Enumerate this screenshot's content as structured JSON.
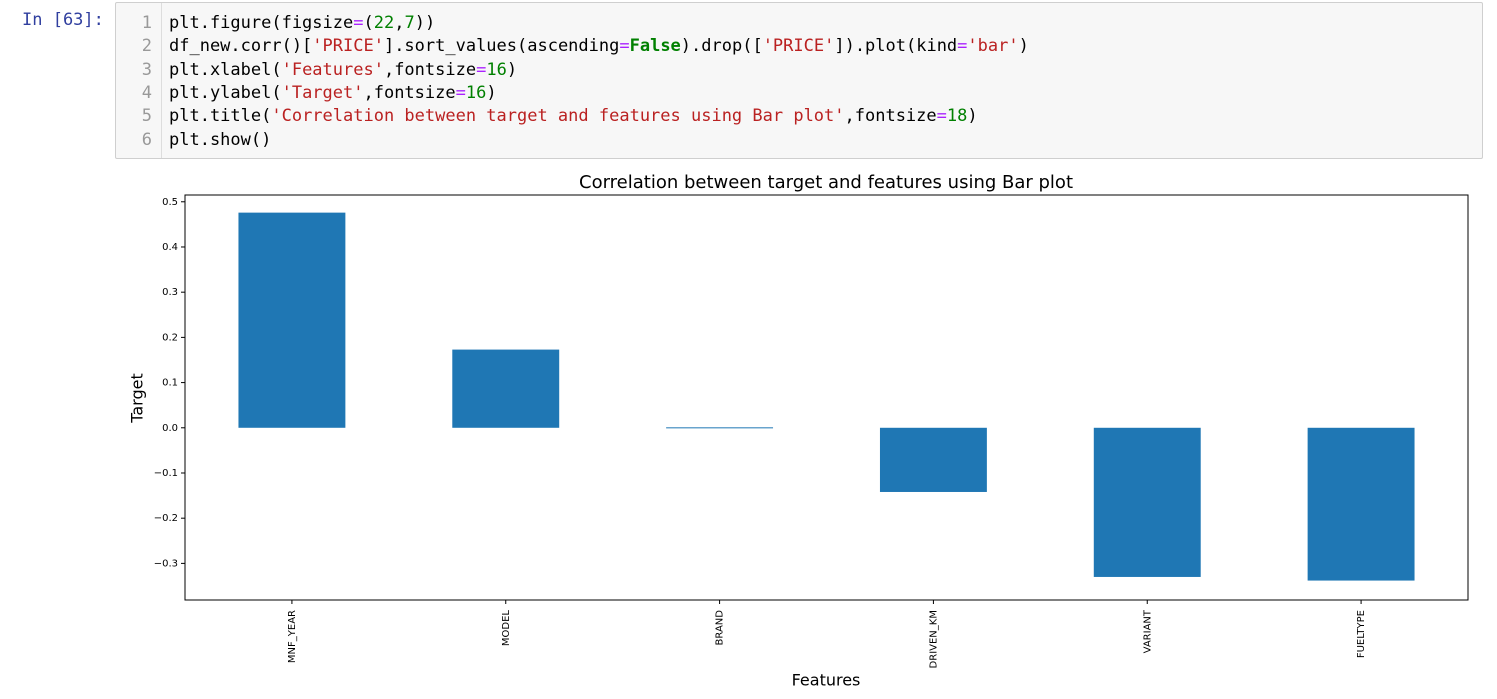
{
  "cell": {
    "prompt": "In [63]:",
    "line_numbers": [
      1,
      2,
      3,
      4,
      5,
      6
    ],
    "lines": [
      [
        "plt.figure(figsize",
        "=",
        "(",
        "22",
        ",",
        "7",
        "))"
      ],
      [
        "df_new.corr()[",
        "'PRICE'",
        "].sort_values(ascending",
        "=",
        "False",
        ").drop([",
        "'PRICE'",
        "]).plot(kind",
        "=",
        "'bar'",
        ")"
      ],
      [
        "plt.xlabel(",
        "'Features'",
        ",fontsize",
        "=",
        "16",
        ")"
      ],
      [
        "plt.ylabel(",
        "'Target'",
        ",fontsize",
        "=",
        "16",
        ")"
      ],
      [
        "plt.title(",
        "'Correlation between target and features using Bar plot'",
        ",fontsize",
        "=",
        "18",
        ")"
      ],
      [
        "plt.show()"
      ]
    ]
  },
  "chart_data": {
    "type": "bar",
    "title": "Correlation between target and features using Bar plot",
    "x_label": "Features",
    "y_label": "Target",
    "categories": [
      "MNF_YEAR",
      "MODEL",
      "BRAND",
      "DRIVEN_KM",
      "VARIANT",
      "FUELTYPE"
    ],
    "values": [
      0.476,
      0.173,
      0.001,
      -0.142,
      -0.33,
      -0.338
    ],
    "color": "#1f77b4",
    "ylim": [
      -0.381,
      0.515
    ],
    "yticks": [
      {
        "value": -0.3,
        "label": "−0.3"
      },
      {
        "value": -0.2,
        "label": "−0.2"
      },
      {
        "value": -0.1,
        "label": "−0.1"
      },
      {
        "value": 0,
        "label": "0.0"
      },
      0.1,
      0.2,
      0.3,
      0.4,
      0.5
    ],
    "grid": false
  }
}
